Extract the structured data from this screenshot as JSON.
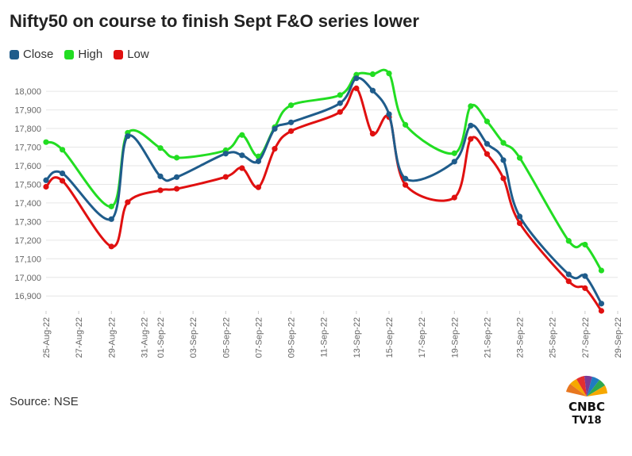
{
  "title": "Nifty50 on course to finish Sept F&O series lower",
  "source": "Source: NSE",
  "logo": {
    "line1": "CNBC",
    "line2": "TV18"
  },
  "chart_data": {
    "type": "line",
    "title": "Nifty50 on course to finish Sept F&O series lower",
    "xlabel": "",
    "ylabel": "",
    "x_ticks": [
      "25-Aug-22",
      "27-Aug-22",
      "29-Aug-22",
      "31-Aug-22",
      "01-Sep-22",
      "03-Sep-22",
      "05-Sep-22",
      "07-Sep-22",
      "09-Sep-22",
      "11-Sep-22",
      "13-Sep-22",
      "15-Sep-22",
      "17-Sep-22",
      "19-Sep-22",
      "21-Sep-22",
      "23-Sep-22",
      "25-Sep-22",
      "27-Sep-22",
      "29-Sep-22"
    ],
    "y_ticks": [
      "16,900",
      "17,000",
      "17,100",
      "17,200",
      "17,300",
      "17,400",
      "17,500",
      "17,600",
      "17,700",
      "17,800",
      "17,900",
      "18,000"
    ],
    "ylim": [
      16820,
      18090
    ],
    "grid": true,
    "legend_position": "top-left",
    "x": [
      "2022-08-25",
      "2022-08-26",
      "2022-08-29",
      "2022-08-30",
      "2022-09-01",
      "2022-09-02",
      "2022-09-05",
      "2022-09-06",
      "2022-09-07",
      "2022-09-08",
      "2022-09-09",
      "2022-09-12",
      "2022-09-13",
      "2022-09-14",
      "2022-09-15",
      "2022-09-16",
      "2022-09-19",
      "2022-09-20",
      "2022-09-21",
      "2022-09-22",
      "2022-09-23",
      "2022-09-26",
      "2022-09-27",
      "2022-09-28"
    ],
    "series": [
      {
        "name": "Close",
        "color": "#1f5c8b",
        "values": [
          17522,
          17559,
          17313,
          17759,
          17543,
          17539,
          17665,
          17656,
          17624,
          17798,
          17833,
          17936,
          18070,
          18004,
          17877,
          17531,
          17622,
          17816,
          17718,
          17630,
          17327,
          17016,
          17007,
          16859
        ]
      },
      {
        "name": "High",
        "color": "#22dd22",
        "values": [
          17727,
          17686,
          17381,
          17777,
          17695,
          17643,
          17683,
          17765,
          17650,
          17807,
          17925,
          17980,
          18089,
          18092,
          18096,
          17820,
          17667,
          17920,
          17838,
          17723,
          17642,
          17196,
          17176,
          17037
        ]
      },
      {
        "name": "Low",
        "color": "#e01010",
        "values": [
          17487,
          17519,
          17166,
          17404,
          17468,
          17476,
          17540,
          17587,
          17484,
          17691,
          17786,
          17889,
          18016,
          17772,
          17861,
          17497,
          17429,
          17744,
          17663,
          17532,
          17291,
          16979,
          16942,
          16820
        ]
      }
    ]
  }
}
